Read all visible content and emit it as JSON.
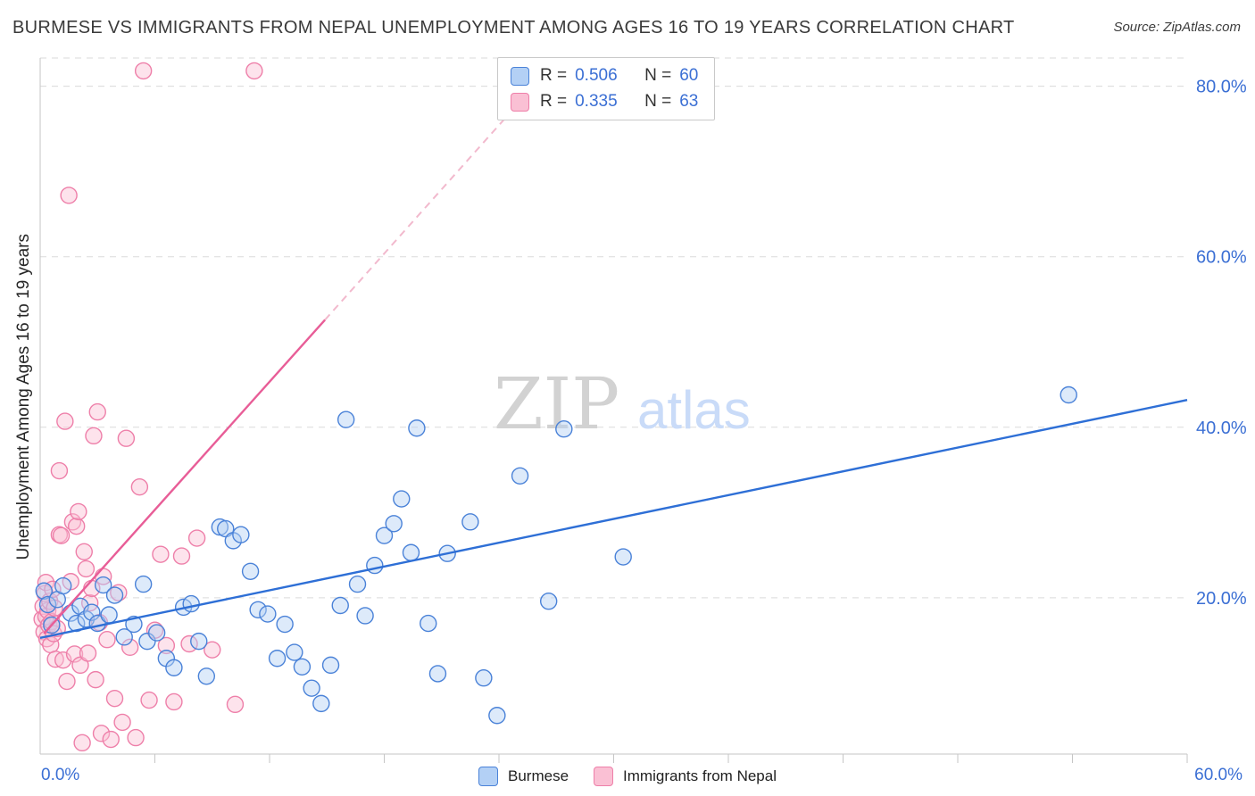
{
  "header": {
    "title": "BURMESE VS IMMIGRANTS FROM NEPAL UNEMPLOYMENT AMONG AGES 16 TO 19 YEARS CORRELATION CHART",
    "source": "Source: ZipAtlas.com"
  },
  "axis": {
    "ylabel": "Unemployment Among Ages 16 to 19 years",
    "x_min_label": "0.0%",
    "x_max_label": "60.0%"
  },
  "watermark": {
    "part1": "ZIP",
    "part2": "atlas"
  },
  "legend_box": {
    "rows": [
      {
        "series": "Burmese",
        "r_label": "R =",
        "r": "0.506",
        "n_label": "N =",
        "n": "60"
      },
      {
        "series": "Immigrants from Nepal",
        "r_label": "R =",
        "r": "0.335",
        "n_label": "N =",
        "n": "63"
      }
    ]
  },
  "bottom_legend": {
    "items": [
      {
        "label": "Burmese"
      },
      {
        "label": "Immigrants from Nepal"
      }
    ]
  },
  "chart_data": {
    "type": "scatter",
    "title": "BURMESE VS IMMIGRANTS FROM NEPAL UNEMPLOYMENT AMONG AGES 16 TO 19 YEARS CORRELATION CHART",
    "xlabel": "",
    "ylabel": "Unemployment Among Ages 16 to 19 years",
    "xlim": [
      0,
      60
    ],
    "ylim": [
      0,
      83.5
    ],
    "grid": "horizontal-dashed",
    "legend_position": "top-center",
    "x_tick_step": 6,
    "y_ticks": [
      {
        "value": 20,
        "label": "20.0%"
      },
      {
        "value": 40,
        "label": "40.0%"
      },
      {
        "value": 60,
        "label": "60.0%"
      },
      {
        "value": 80,
        "label": "80.0%"
      }
    ],
    "series": [
      {
        "name": "Burmese",
        "R": 0.506,
        "N": 60,
        "fill": "#b3d0f5",
        "edge": "#4a82d8",
        "line": "#2e6fd6",
        "trend": {
          "x1": 0,
          "y1": 15.3,
          "x2": 60,
          "y2": 43.2
        },
        "points": [
          [
            0.2,
            20.8
          ],
          [
            0.4,
            19.2
          ],
          [
            0.6,
            16.8
          ],
          [
            0.9,
            19.8
          ],
          [
            1.2,
            21.4
          ],
          [
            1.6,
            18.2
          ],
          [
            1.9,
            17.0
          ],
          [
            2.1,
            19.0
          ],
          [
            2.4,
            17.5
          ],
          [
            2.7,
            18.3
          ],
          [
            3.0,
            17.0
          ],
          [
            3.3,
            21.5
          ],
          [
            3.6,
            18.0
          ],
          [
            3.9,
            20.3
          ],
          [
            4.4,
            15.4
          ],
          [
            4.9,
            16.9
          ],
          [
            5.4,
            21.6
          ],
          [
            5.6,
            14.9
          ],
          [
            6.1,
            15.9
          ],
          [
            6.6,
            12.9
          ],
          [
            7.0,
            11.8
          ],
          [
            7.5,
            18.9
          ],
          [
            7.9,
            19.3
          ],
          [
            8.3,
            14.9
          ],
          [
            8.7,
            10.8
          ],
          [
            9.4,
            28.3
          ],
          [
            9.7,
            28.1
          ],
          [
            10.1,
            26.7
          ],
          [
            10.5,
            27.4
          ],
          [
            11.0,
            23.1
          ],
          [
            11.4,
            18.6
          ],
          [
            11.9,
            18.1
          ],
          [
            12.4,
            12.9
          ],
          [
            12.8,
            16.9
          ],
          [
            13.3,
            13.6
          ],
          [
            13.7,
            11.9
          ],
          [
            14.2,
            9.4
          ],
          [
            14.7,
            7.6
          ],
          [
            15.2,
            12.1
          ],
          [
            15.7,
            19.1
          ],
          [
            16.0,
            40.9
          ],
          [
            16.6,
            21.6
          ],
          [
            17.0,
            17.9
          ],
          [
            17.5,
            23.8
          ],
          [
            18.0,
            27.3
          ],
          [
            18.5,
            28.7
          ],
          [
            18.9,
            31.6
          ],
          [
            19.4,
            25.3
          ],
          [
            19.7,
            39.9
          ],
          [
            20.3,
            17.0
          ],
          [
            20.8,
            11.1
          ],
          [
            21.3,
            25.2
          ],
          [
            22.5,
            28.9
          ],
          [
            23.2,
            10.6
          ],
          [
            23.9,
            6.2
          ],
          [
            25.1,
            34.3
          ],
          [
            26.6,
            19.6
          ],
          [
            27.4,
            39.8
          ],
          [
            30.5,
            24.8
          ],
          [
            53.8,
            43.8
          ]
        ]
      },
      {
        "name": "Immigrants from Nepal",
        "R": 0.335,
        "N": 63,
        "fill": "#fac0d4",
        "edge": "#ee7fa9",
        "line": "#e85d97",
        "trend": {
          "x1": 0.2,
          "y1": 15.8,
          "x2": 14.9,
          "y2": 52.6
        },
        "trend_dashed": {
          "x1": 14.9,
          "y1": 52.6,
          "x2": 26.5,
          "y2": 81.7
        },
        "points": [
          [
            0.1,
            17.5
          ],
          [
            0.15,
            19.0
          ],
          [
            0.2,
            16.0
          ],
          [
            0.25,
            20.5
          ],
          [
            0.3,
            17.8
          ],
          [
            0.3,
            21.8
          ],
          [
            0.35,
            15.2
          ],
          [
            0.4,
            18.5
          ],
          [
            0.45,
            16.8
          ],
          [
            0.5,
            19.6
          ],
          [
            0.55,
            14.5
          ],
          [
            0.6,
            17.2
          ],
          [
            0.65,
            21.0
          ],
          [
            0.7,
            15.8
          ],
          [
            0.75,
            18.8
          ],
          [
            0.8,
            12.8
          ],
          [
            0.9,
            16.4
          ],
          [
            1.0,
            27.4
          ],
          [
            1.0,
            34.9
          ],
          [
            1.1,
            27.3
          ],
          [
            1.2,
            12.7
          ],
          [
            1.3,
            40.7
          ],
          [
            1.4,
            10.2
          ],
          [
            1.5,
            67.2
          ],
          [
            1.6,
            21.9
          ],
          [
            1.7,
            28.9
          ],
          [
            1.8,
            13.4
          ],
          [
            1.9,
            28.4
          ],
          [
            2.0,
            30.1
          ],
          [
            2.1,
            12.1
          ],
          [
            2.2,
            3.0
          ],
          [
            2.3,
            25.4
          ],
          [
            2.4,
            23.4
          ],
          [
            2.5,
            13.5
          ],
          [
            2.6,
            19.4
          ],
          [
            2.7,
            21.1
          ],
          [
            2.8,
            39.0
          ],
          [
            2.9,
            10.4
          ],
          [
            3.0,
            41.8
          ],
          [
            3.1,
            17.1
          ],
          [
            3.2,
            4.1
          ],
          [
            3.3,
            22.5
          ],
          [
            3.5,
            15.1
          ],
          [
            3.7,
            3.4
          ],
          [
            3.9,
            8.2
          ],
          [
            4.1,
            20.6
          ],
          [
            4.3,
            5.4
          ],
          [
            4.5,
            38.7
          ],
          [
            4.7,
            14.2
          ],
          [
            5.0,
            3.6
          ],
          [
            5.2,
            33.0
          ],
          [
            5.4,
            81.8
          ],
          [
            5.7,
            8.0
          ],
          [
            6.0,
            16.2
          ],
          [
            6.3,
            25.1
          ],
          [
            6.6,
            14.4
          ],
          [
            7.0,
            7.8
          ],
          [
            7.4,
            24.9
          ],
          [
            7.8,
            14.6
          ],
          [
            8.2,
            27.0
          ],
          [
            9.0,
            13.9
          ],
          [
            10.2,
            7.5
          ],
          [
            11.2,
            81.8
          ]
        ]
      }
    ]
  }
}
